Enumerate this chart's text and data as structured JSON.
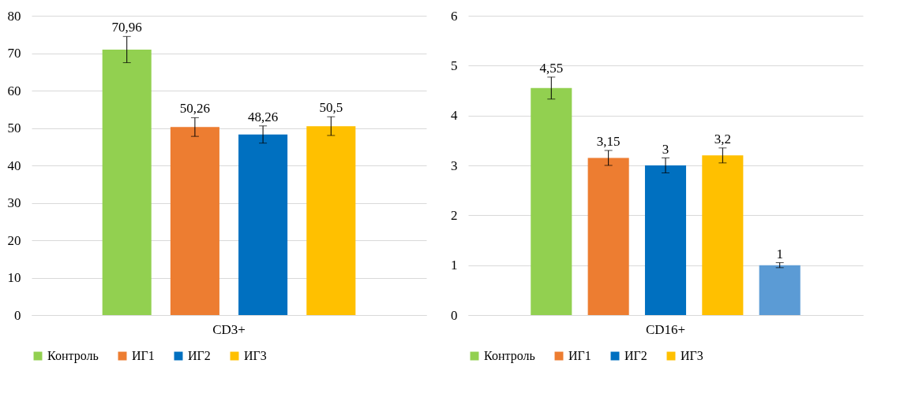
{
  "chart_data": [
    {
      "type": "bar",
      "categories": [
        "CD3+"
      ],
      "ylim": [
        0,
        80
      ],
      "yticks": [
        0,
        10,
        20,
        30,
        40,
        50,
        60,
        70,
        80
      ],
      "grid": "y",
      "legend": "bottom",
      "series": [
        {
          "name": "Контроль",
          "color": "#92d050",
          "values": [
            70.96
          ],
          "errors": [
            3.5
          ],
          "value_labels": [
            "70,96"
          ]
        },
        {
          "name": "ИГ1",
          "color": "#ed7d31",
          "values": [
            50.26
          ],
          "errors": [
            2.5
          ],
          "value_labels": [
            "50,26"
          ]
        },
        {
          "name": "ИГ2",
          "color": "#0070c0",
          "values": [
            48.26
          ],
          "errors": [
            2.3
          ],
          "value_labels": [
            "48,26"
          ]
        },
        {
          "name": "ИГ3",
          "color": "#ffc000",
          "values": [
            50.5
          ],
          "errors": [
            2.5
          ],
          "value_labels": [
            "50,5"
          ]
        }
      ]
    },
    {
      "type": "bar",
      "categories": [
        "CD16+"
      ],
      "ylim": [
        0,
        6
      ],
      "yticks": [
        0,
        1,
        2,
        3,
        4,
        5,
        6
      ],
      "grid": "y",
      "legend": "bottom",
      "series": [
        {
          "name": "Контроль",
          "color": "#92d050",
          "values": [
            4.55
          ],
          "errors": [
            0.22
          ],
          "value_labels": [
            "4,55"
          ]
        },
        {
          "name": "ИГ1",
          "color": "#ed7d31",
          "values": [
            3.15
          ],
          "errors": [
            0.15
          ],
          "value_labels": [
            "3,15"
          ]
        },
        {
          "name": "ИГ2",
          "color": "#0070c0",
          "values": [
            3
          ],
          "errors": [
            0.15
          ],
          "value_labels": [
            "3"
          ]
        },
        {
          "name": "ИГ3",
          "color": "#ffc000",
          "values": [
            3.2
          ],
          "errors": [
            0.15
          ],
          "value_labels": [
            "3,2"
          ]
        },
        {
          "color": "#5b9bd5",
          "values": [
            1
          ],
          "errors": [
            0.05
          ],
          "value_labels": [
            "1"
          ]
        }
      ]
    }
  ]
}
